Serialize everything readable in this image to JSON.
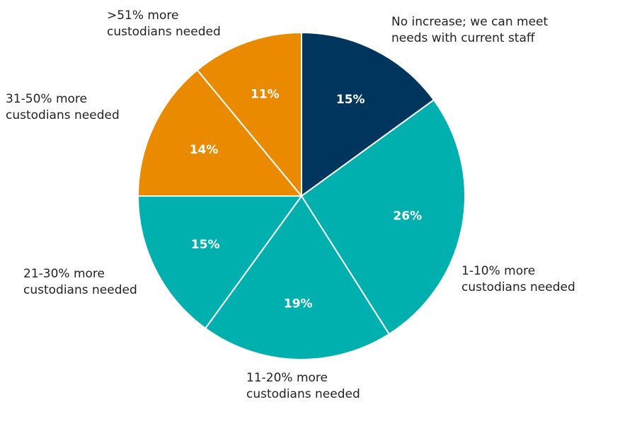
{
  "chart_data": {
    "type": "pie",
    "start_angle_deg": 0,
    "direction": "clockwise",
    "slices": [
      {
        "label": [
          "No increase; we can meet",
          "needs with current staff"
        ],
        "value": 15,
        "text": "15%",
        "color": "#00365e"
      },
      {
        "label": [
          "1-10% more",
          "custodians needed"
        ],
        "value": 26,
        "text": "26%",
        "color": "#00b0ae"
      },
      {
        "label": [
          "11-20% more",
          "custodians needed"
        ],
        "value": 19,
        "text": "19%",
        "color": "#00b0ae"
      },
      {
        "label": [
          "21-30% more",
          "custodians needed"
        ],
        "value": 15,
        "text": "15%",
        "color": "#00b0ae"
      },
      {
        "label": [
          "31-50% more",
          "custodians needed"
        ],
        "value": 14,
        "text": "14%",
        "color": "#e98a00"
      },
      {
        "label": [
          ">51% more",
          "custodians needed"
        ],
        "value": 11,
        "text": "11%",
        "color": "#e98a00"
      }
    ]
  }
}
